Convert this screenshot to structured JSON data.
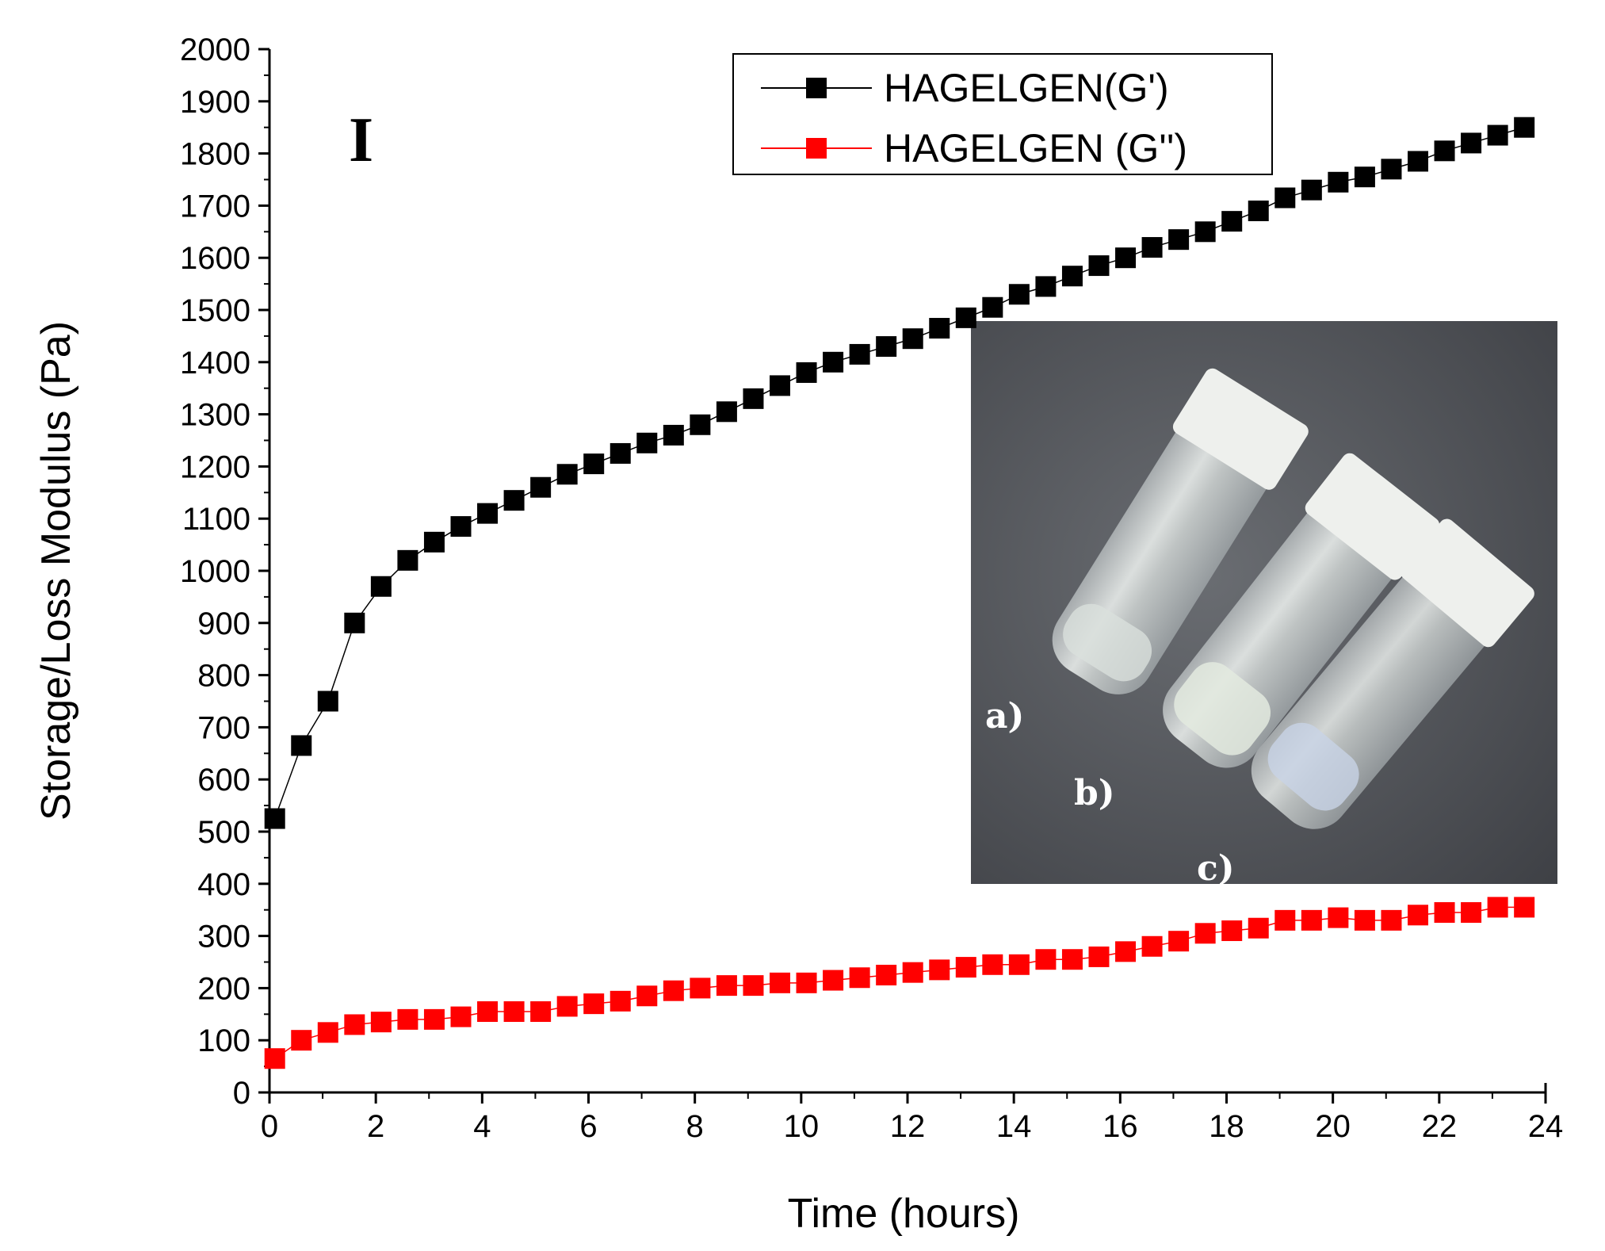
{
  "chart_data": {
    "type": "scatter",
    "panel_label": "I",
    "xlabel": "Time (hours)",
    "ylabel": "Storage/Loss Modulus (Pa)",
    "xlim": [
      0,
      24
    ],
    "ylim": [
      0,
      2000
    ],
    "x_ticks": [
      0,
      2,
      4,
      6,
      8,
      10,
      12,
      14,
      16,
      18,
      20,
      22,
      24
    ],
    "y_ticks": [
      0,
      100,
      200,
      300,
      400,
      500,
      600,
      700,
      800,
      900,
      1000,
      1100,
      1200,
      1300,
      1400,
      1500,
      1600,
      1700,
      1800,
      1900,
      2000
    ],
    "grid": false,
    "legend_position": "top-center",
    "x": [
      0.1,
      0.6,
      1.1,
      1.6,
      2.1,
      2.6,
      3.1,
      3.6,
      4.1,
      4.6,
      5.1,
      5.6,
      6.1,
      6.6,
      7.1,
      7.6,
      8.1,
      8.6,
      9.1,
      9.6,
      10.1,
      10.6,
      11.1,
      11.6,
      12.1,
      12.6,
      13.1,
      13.6,
      14.1,
      14.6,
      15.1,
      15.6,
      16.1,
      16.6,
      17.1,
      17.6,
      18.1,
      18.6,
      19.1,
      19.6,
      20.1,
      20.6,
      21.1,
      21.6,
      22.1,
      22.6,
      23.1,
      23.6
    ],
    "series": [
      {
        "name": "HAGELGEN(G')",
        "color": "#000000",
        "values": [
          525,
          665,
          750,
          900,
          970,
          1020,
          1055,
          1085,
          1110,
          1135,
          1160,
          1185,
          1205,
          1225,
          1245,
          1260,
          1280,
          1305,
          1330,
          1355,
          1380,
          1400,
          1415,
          1430,
          1445,
          1465,
          1485,
          1505,
          1530,
          1545,
          1565,
          1585,
          1600,
          1620,
          1635,
          1650,
          1670,
          1690,
          1715,
          1730,
          1745,
          1755,
          1770,
          1785,
          1805,
          1820,
          1835,
          1850
        ]
      },
      {
        "name": "HAGELGEN (G'')",
        "color": "#ff0000",
        "values": [
          65,
          100,
          115,
          130,
          135,
          140,
          140,
          145,
          155,
          155,
          155,
          165,
          170,
          175,
          185,
          195,
          200,
          205,
          205,
          210,
          210,
          215,
          220,
          225,
          230,
          235,
          240,
          245,
          245,
          255,
          255,
          260,
          270,
          280,
          290,
          305,
          310,
          315,
          330,
          330,
          335,
          330,
          330,
          340,
          345,
          345,
          355,
          355
        ]
      }
    ],
    "inset_labels": [
      "a)",
      "b)",
      "c)"
    ]
  }
}
